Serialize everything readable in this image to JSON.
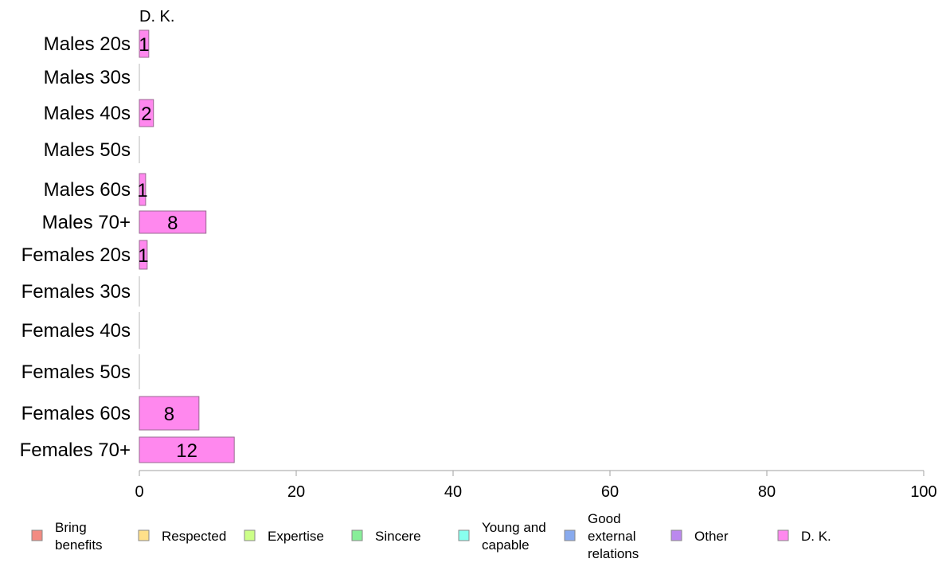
{
  "chart_data": {
    "type": "bar",
    "orientation": "horizontal",
    "stacked": true,
    "series_title": "D. K.",
    "categories": [
      "Males 20s",
      "Males 30s",
      "Males 40s",
      "Males 50s",
      "Males 60s",
      "Males 70+",
      "Females 20s",
      "Females 30s",
      "Females 40s",
      "Females 50s",
      "Females 60s",
      "Females 70+"
    ],
    "series": [
      {
        "name": "D. K.",
        "color": "#ff88ee",
        "values": [
          1.2,
          0,
          1.8,
          0,
          0.8,
          8.5,
          1.0,
          0,
          0,
          0,
          7.6,
          12.1
        ],
        "labels": [
          "1",
          "",
          "2",
          "",
          "1",
          "8",
          "1",
          "",
          "",
          "",
          "8",
          "12"
        ]
      }
    ],
    "xlim": [
      0,
      100
    ],
    "xticks": [
      "0",
      "20",
      "40",
      "60",
      "80",
      "100"
    ],
    "grid": false,
    "legend_position": "bottom",
    "legend": [
      {
        "label": "Bring\nbenefits",
        "color": "#f28b82"
      },
      {
        "label": "Respected",
        "color": "#ffe08a"
      },
      {
        "label": "Expertise",
        "color": "#ccff88"
      },
      {
        "label": "Sincere",
        "color": "#88ee99"
      },
      {
        "label": "Young and\ncapable",
        "color": "#88ffee"
      },
      {
        "label": "Good\nexternal\nrelations",
        "color": "#88aaee"
      },
      {
        "label": "Other",
        "color": "#bb88ee"
      },
      {
        "label": "D. K.",
        "color": "#ff88ee"
      }
    ]
  }
}
